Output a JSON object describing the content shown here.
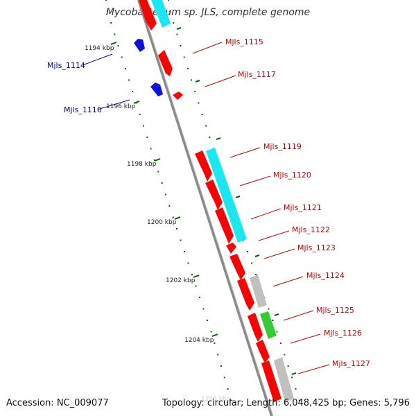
{
  "title": "Mycobacterium sp. JLS, complete genome",
  "footer": {
    "accession": "Accession: NC_009077",
    "summary": "Topology: circular; Length: 6,048,425 bp; Genes: 5,796"
  },
  "colors": {
    "forward_cds": "#ff0000",
    "reverse_cds": "#1010e0",
    "cyan_feature": "#18e8f0",
    "gray_feature": "#c0c0c0",
    "green_feature": "#33cc33",
    "forward_label": "#cc0000",
    "reverse_label": "#000099",
    "backbone": "#888888",
    "tick": "#006600"
  },
  "ticks": [
    {
      "label": "1194 kbp"
    },
    {
      "label": "1196 kbp"
    },
    {
      "label": "1198 kbp"
    },
    {
      "label": "1200 kbp"
    },
    {
      "label": "1202 kbp"
    },
    {
      "label": "1204 kbp"
    },
    {
      "label": "1206 kbp"
    }
  ],
  "genes_forward": [
    {
      "label": "Mjls_1115"
    },
    {
      "label": "Mjls_1117"
    },
    {
      "label": "Mjls_1119"
    },
    {
      "label": "Mjls_1120"
    },
    {
      "label": "Mjls_1121"
    },
    {
      "label": "Mjls_1122"
    },
    {
      "label": "Mjls_1123"
    },
    {
      "label": "Mjls_1124"
    },
    {
      "label": "Mjls_1125"
    },
    {
      "label": "Mjls_1126"
    },
    {
      "label": "Mjls_1127"
    }
  ],
  "genes_reverse": [
    {
      "label": "Mjls_1114"
    },
    {
      "label": "Mjls_1116"
    }
  ]
}
